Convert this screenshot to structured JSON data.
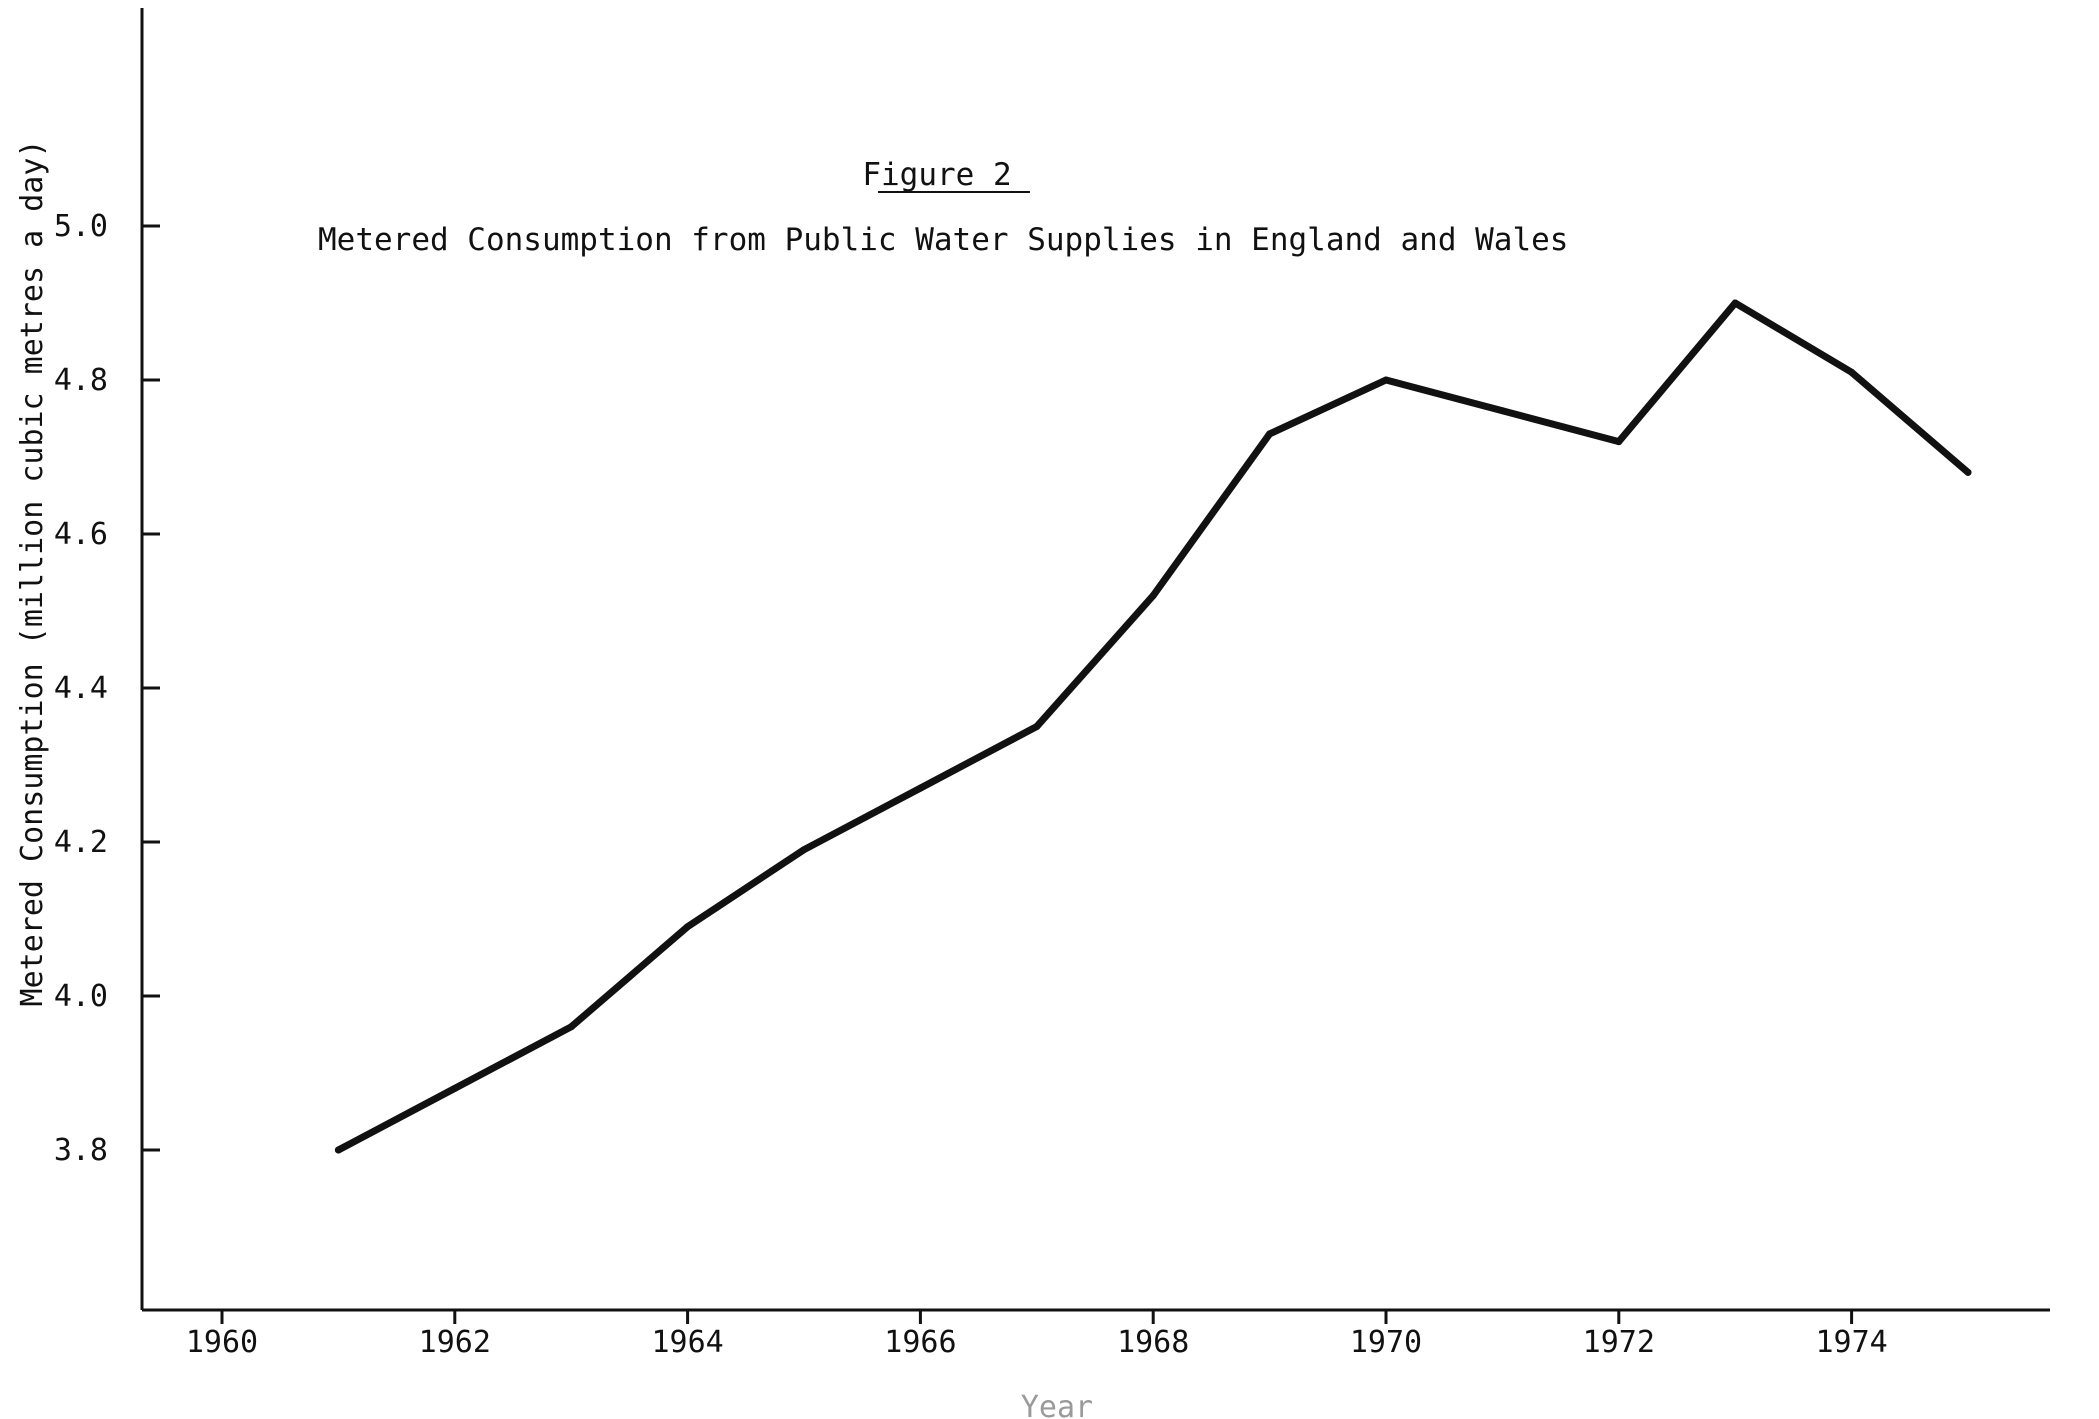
{
  "chart_data": {
    "type": "line",
    "figure_label": "Figure 2",
    "title": "Metered Consumption from Public Water Supplies in England and Wales",
    "xlabel": "Year",
    "ylabel": "Metered Consumption (million cubic metres a day)",
    "x_ticks": [
      1960,
      1962,
      1964,
      1966,
      1968,
      1970,
      1972,
      1974
    ],
    "x_tick_labels": [
      "1960",
      "1962",
      "1964",
      "1966",
      "1968",
      "1970",
      "1972",
      "1974"
    ],
    "y_ticks": [
      3.8,
      4.0,
      4.2,
      4.4,
      4.6,
      4.8,
      5.0
    ],
    "y_tick_labels": [
      "3.8",
      "4.0",
      "4.2",
      "4.4",
      "4.6",
      "4.8",
      "5.0"
    ],
    "xlim": [
      1959.3,
      1976.7
    ],
    "ylim": [
      3.6,
      5.3
    ],
    "grid": false,
    "series": [
      {
        "x": [
          1961,
          1962,
          1963,
          1964,
          1965,
          1966,
          1967,
          1968,
          1969,
          1970,
          1971,
          1972,
          1973,
          1974,
          1975
        ],
        "values": [
          3.8,
          3.88,
          3.96,
          4.09,
          4.19,
          4.27,
          4.35,
          4.52,
          4.73,
          4.8,
          4.76,
          4.72,
          4.9,
          4.81,
          4.68
        ]
      }
    ],
    "line_color": "#111111"
  }
}
